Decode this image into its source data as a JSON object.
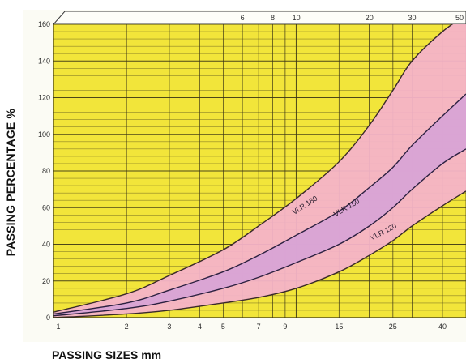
{
  "chart_data": {
    "type": "line",
    "title": "",
    "xlabel": "PASSING SIZES mm",
    "ylabel": "PASSING PERCENTAGE %",
    "x_scale": "log",
    "xlim": [
      1,
      50
    ],
    "ylim": [
      0,
      160
    ],
    "y_ticks": [
      "0",
      "20",
      "40",
      "60",
      "80",
      "100",
      "120",
      "140",
      "160"
    ],
    "x_ticks_bottom": [
      "1",
      "2",
      "3",
      "4",
      "5",
      "7",
      "9",
      "15",
      "25",
      "40"
    ],
    "x_ticks_top": [
      "6",
      "8",
      "10",
      "20",
      "30",
      "50"
    ],
    "grid": true,
    "colors": {
      "plot_bg": "#f2e53a",
      "band": "#f4b3c8",
      "band_inner": "#d7a3d6",
      "grid": "#3a3416",
      "curve": "#2b2040",
      "outline": "#3a2a2a"
    },
    "band": {
      "upper": {
        "x": [
          1,
          2,
          3,
          5,
          7,
          10,
          15,
          20,
          25,
          30,
          40,
          50
        ],
        "y": [
          3,
          13,
          23,
          37,
          50,
          65,
          85,
          105,
          124,
          140,
          156,
          165
        ]
      },
      "lower": {
        "x": [
          1,
          2,
          3,
          5,
          7,
          10,
          15,
          20,
          25,
          30,
          40,
          50
        ],
        "y": [
          0,
          2,
          4,
          8,
          11,
          16,
          25,
          34,
          42,
          50,
          61,
          69
        ]
      }
    },
    "series": [
      {
        "name": "VLR 180",
        "x": [
          1,
          2,
          3,
          5,
          7,
          10,
          15,
          20,
          25,
          30,
          40,
          50
        ],
        "y": [
          3,
          13,
          23,
          37,
          50,
          65,
          85,
          105,
          124,
          140,
          156,
          165
        ]
      },
      {
        "name": "VLR 150",
        "x": [
          1,
          2,
          3,
          5,
          7,
          10,
          15,
          20,
          25,
          30,
          40,
          50
        ],
        "y": [
          2,
          8,
          15,
          25,
          34,
          45,
          58,
          71,
          82,
          94,
          110,
          122
        ]
      },
      {
        "name": "VLR 120",
        "x": [
          1,
          2,
          3,
          5,
          7,
          10,
          15,
          20,
          25,
          30,
          40,
          50
        ],
        "y": [
          1,
          5,
          9,
          16,
          22,
          30,
          40,
          50,
          60,
          70,
          84,
          92
        ]
      },
      {
        "name": "",
        "x": [
          1,
          2,
          3,
          5,
          7,
          10,
          15,
          20,
          25,
          30,
          40,
          50
        ],
        "y": [
          0,
          2,
          4,
          8,
          11,
          16,
          25,
          34,
          42,
          50,
          61,
          69
        ]
      }
    ],
    "annotations": [
      "VLR 180",
      "VLR 150",
      "VLR 120"
    ]
  }
}
